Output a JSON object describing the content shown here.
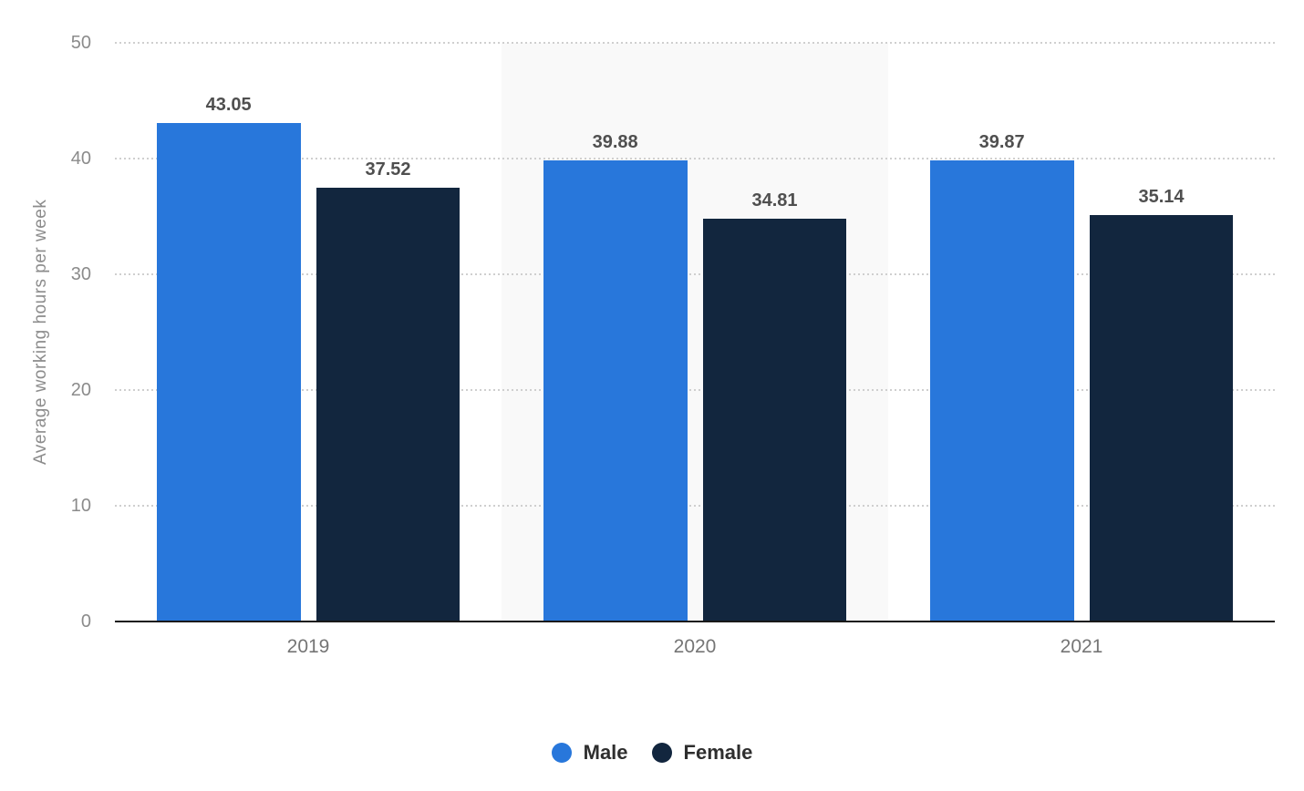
{
  "chart_data": {
    "type": "bar",
    "title": "",
    "xlabel": "",
    "ylabel": "Average working hours per week",
    "categories": [
      "2019",
      "2020",
      "2021"
    ],
    "series": [
      {
        "name": "Male",
        "color": "#2877DB",
        "values": [
          43.05,
          39.88,
          39.87
        ],
        "labels": [
          "43.05",
          "39.88",
          "39.87"
        ]
      },
      {
        "name": "Female",
        "color": "#12263E",
        "values": [
          37.52,
          34.81,
          35.14
        ],
        "labels": [
          "37.52",
          "34.81",
          "35.14"
        ]
      }
    ],
    "ylim": [
      0,
      50
    ],
    "yticks": [
      0,
      10,
      20,
      30,
      40,
      50
    ],
    "grid": "horizontal-dotted",
    "gridline_color": "#cfcfcf",
    "axis_line_color": "#191919",
    "tick_label_color": "#8b8b8b",
    "value_label_color": "#4f4f4f",
    "legend_position": "bottom-center",
    "highlight_band": {
      "category": "2020",
      "color": "#f9f9f9"
    }
  }
}
